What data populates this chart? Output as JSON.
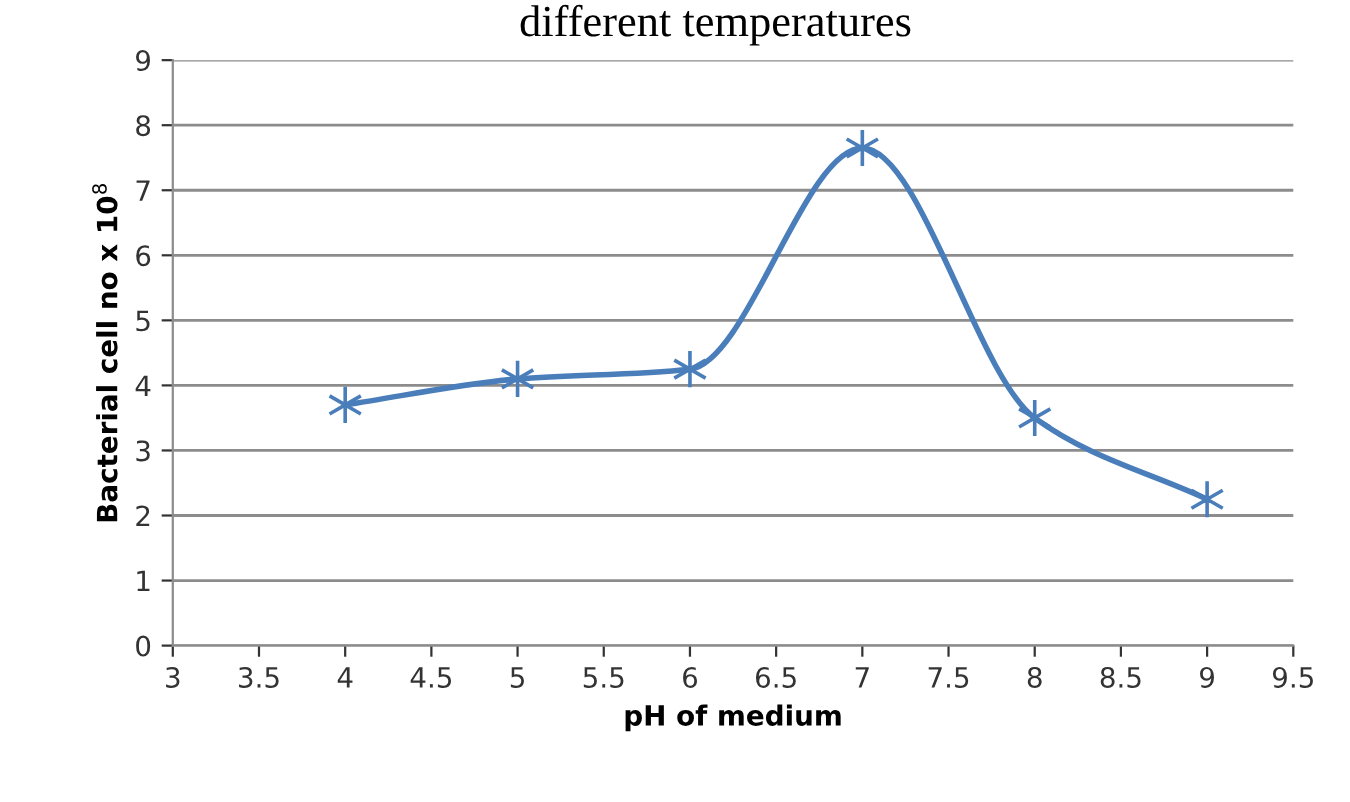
{
  "chart_data": {
    "type": "line",
    "title": "different temperatures",
    "xlabel": "pH of medium",
    "ylabel": "Bacterial cell no x 10$^{8}$",
    "x": [
      4,
      5,
      6,
      7,
      8,
      9
    ],
    "series": [
      {
        "color": "#4a7ebb",
        "values": [
          3.7,
          4.1,
          4.25,
          7.65,
          3.5,
          2.25
        ]
      }
    ],
    "xlim": [
      3,
      9.5
    ],
    "xticks": [
      3,
      3.5,
      4,
      4.5,
      5,
      5.5,
      6,
      6.5,
      7,
      7.5,
      8,
      8.5,
      9,
      9.5
    ],
    "ylim": [
      0,
      9
    ],
    "yticks": [
      0,
      1,
      2,
      3,
      4,
      5,
      6,
      7,
      8,
      9
    ],
    "grid": "y",
    "marker": "cross",
    "line_style": "solid",
    "legend": false
  }
}
